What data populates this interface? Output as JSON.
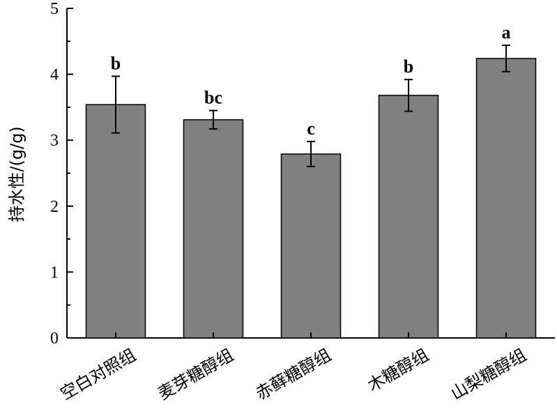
{
  "chart_data": {
    "type": "bar",
    "ylabel": "持水性/(g/g)",
    "xlabel": "",
    "ylim": [
      0,
      5
    ],
    "yticks": [
      "0",
      "1",
      "2",
      "3",
      "4",
      "5"
    ],
    "categories": [
      "空白对照组",
      "麦芽糖醇组",
      "赤藓糖醇组",
      "木糖醇组",
      "山梨糖醇组"
    ],
    "values": [
      3.54,
      3.31,
      2.79,
      3.68,
      4.24
    ],
    "errors": [
      0.43,
      0.14,
      0.19,
      0.24,
      0.2
    ],
    "significance": [
      "b",
      "bc",
      "c",
      "b",
      "a"
    ],
    "bar_color": "#808080",
    "grid": false
  }
}
